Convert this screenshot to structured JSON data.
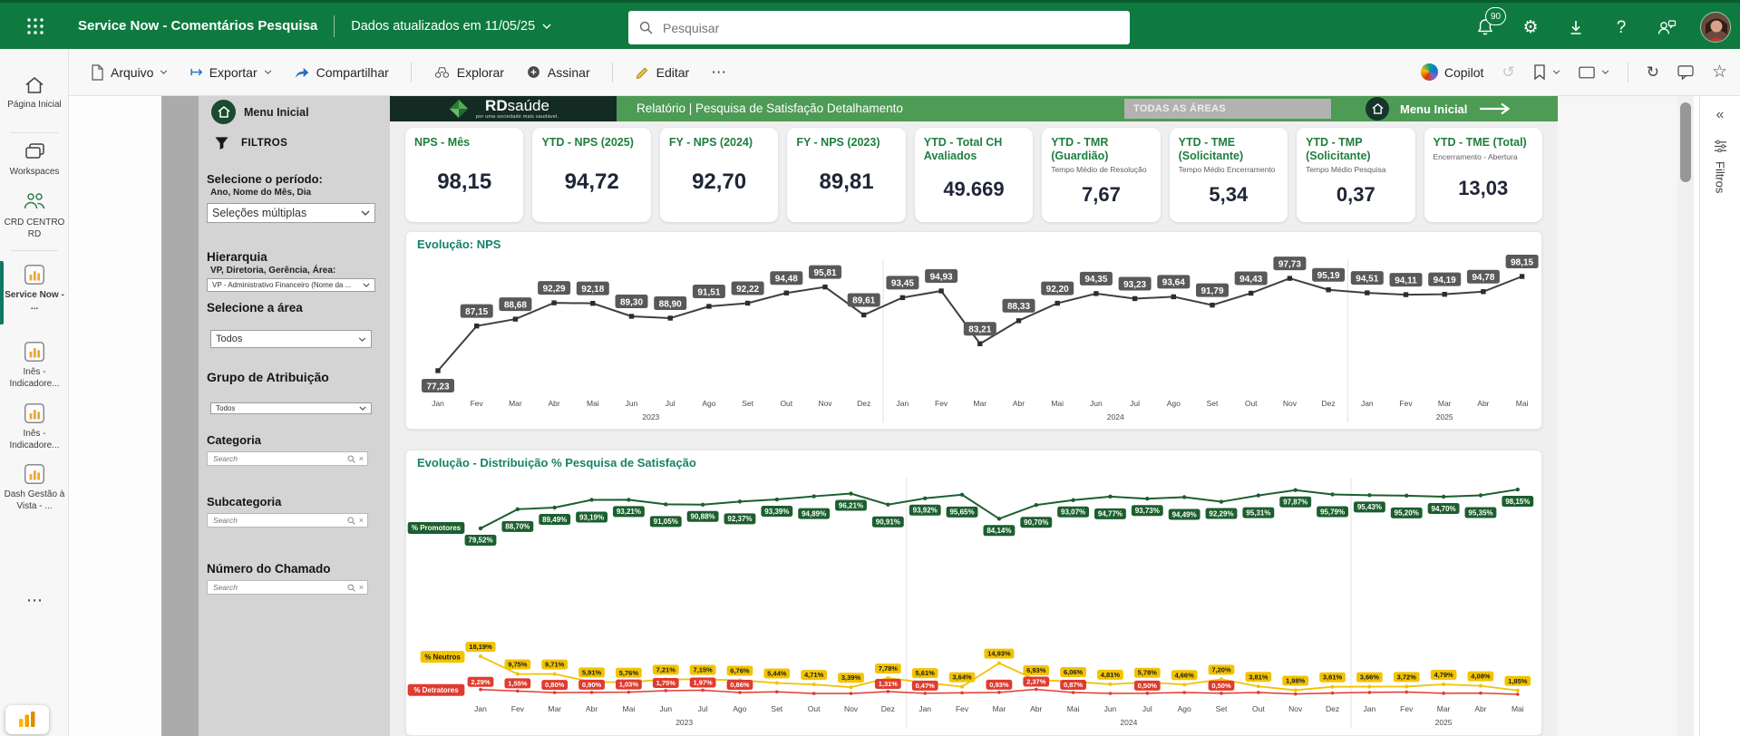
{
  "topbar": {
    "title": "Service Now - Comentários Pesquisa",
    "updated": "Dados atualizados em 11/05/25",
    "search_placeholder": "Pesquisar",
    "notif_count": "90"
  },
  "toolbar": {
    "items": [
      "Arquivo",
      "Exportar",
      "Compartilhar",
      "Explorar",
      "Assinar",
      "Editar"
    ],
    "copilot": "Copilot"
  },
  "glyphs": {
    "more": "⋯",
    "refresh": "↻",
    "star": "☆",
    "help": "?",
    "collapse": "«",
    "close": "×",
    "export": "↦",
    "undo": "↺",
    "gear": "⚙"
  },
  "sidebar": {
    "items": [
      {
        "label": "Página Inicial"
      },
      {
        "label": "Workspaces"
      },
      {
        "label": "CRD CENTRO RD"
      },
      {
        "label": "Service Now - ...",
        "active": true
      },
      {
        "label": "Inês - Indicadore..."
      },
      {
        "label": "Inês - Indicadore..."
      },
      {
        "label": "Dash Gestão à Vista - ..."
      }
    ]
  },
  "filters": {
    "menu": "Menu Inicial",
    "title": "FILTROS",
    "period_label": "Selecione o período:",
    "period_sub": "Ano, Nome do Mês, Dia",
    "period_value": "Seleções múltiplas",
    "hier_label": "Hierarquia",
    "hier_sub": "VP, Diretoria, Gerência, Área:",
    "hier_value": "VP - Administrativo Financeiro  (Nome da ...",
    "area_label": "Selecione a área",
    "area_value": "Todos",
    "grupo_label": "Grupo de Atribuição",
    "grupo_value": "Todos",
    "categoria_label": "Categoria",
    "subcategoria_label": "Subcategoria",
    "chamado_label": "Número do Chamado",
    "search_placeholder": "Search"
  },
  "report_header": {
    "brand": "RD",
    "brand2": "saúde",
    "brand_sub": "por uma sociedade mais saudável.",
    "title": "Relatório | Pesquisa de Satisfação Detalhamento",
    "badge": "TODAS AS ÁREAS",
    "menu": "Menu Inicial"
  },
  "kpis": [
    {
      "title": "NPS - Mês",
      "value": "98,15"
    },
    {
      "title": "YTD - NPS (2025)",
      "value": "94,72"
    },
    {
      "title": "FY - NPS (2024)",
      "value": "92,70"
    },
    {
      "title": "FY - NPS (2023)",
      "value": "89,81"
    },
    {
      "title": "YTD - Total CH Avaliados",
      "value": "49.669"
    },
    {
      "title": "YTD - TMR (Guardião)",
      "sub": "Tempo Médio de Resolução",
      "value": "7,67"
    },
    {
      "title": "YTD - TME (Solicitante)",
      "sub": "Tempo Médio  Encerramento",
      "value": "5,34"
    },
    {
      "title": "YTD - TMP (Solicitante)",
      "sub": "Tempo Médio Pesquisa",
      "value": "0,37"
    },
    {
      "title": "YTD - TME (Total)",
      "sub": "Encerramento - Abertura",
      "value": "13,03"
    }
  ],
  "chart_data": [
    {
      "type": "line",
      "title": "Evolução: NPS",
      "x": [
        "Jan",
        "Fev",
        "Mar",
        "Abr",
        "Mai",
        "Jun",
        "Jul",
        "Ago",
        "Set",
        "Out",
        "Nov",
        "Dez",
        "Jan",
        "Fev",
        "Mar",
        "Abr",
        "Mai",
        "Jun",
        "Jul",
        "Ago",
        "Set",
        "Out",
        "Nov",
        "Dez",
        "Jan",
        "Fev",
        "Mar",
        "Abr",
        "Mai"
      ],
      "year_groups": [
        {
          "label": "2023",
          "from": 0,
          "to": 11
        },
        {
          "label": "2024",
          "from": 12,
          "to": 23
        },
        {
          "label": "2025",
          "from": 24,
          "to": 28
        }
      ],
      "ylim": [
        75,
        100
      ],
      "grid": false,
      "value_labels": true,
      "series": [
        {
          "name": "NPS",
          "color": "#3f3f3f",
          "values": [
            77.23,
            87.15,
            88.68,
            92.29,
            92.18,
            89.3,
            88.9,
            91.51,
            92.22,
            94.48,
            95.81,
            89.61,
            93.45,
            94.93,
            83.21,
            88.33,
            92.2,
            94.35,
            93.23,
            93.64,
            91.79,
            94.43,
            97.73,
            95.19,
            94.51,
            94.11,
            94.19,
            94.78,
            98.15
          ]
        }
      ],
      "label_bg": "#595959"
    },
    {
      "type": "line",
      "title": "Evolução - Distribuição % Pesquisa de Satisfação",
      "x": [
        "Jan",
        "Fev",
        "Mar",
        "Abr",
        "Mai",
        "Jun",
        "Jul",
        "Ago",
        "Set",
        "Out",
        "Nov",
        "Dez",
        "Jan",
        "Fev",
        "Mar",
        "Abr",
        "Mai",
        "Jun",
        "Jul",
        "Ago",
        "Set",
        "Out",
        "Nov",
        "Dez",
        "Jan",
        "Fev",
        "Mar",
        "Abr",
        "Mai"
      ],
      "year_groups": [
        {
          "label": "2023",
          "from": 0,
          "to": 11
        },
        {
          "label": "2024",
          "from": 12,
          "to": 23
        },
        {
          "label": "2025",
          "from": 24,
          "to": 28
        }
      ],
      "ylim": [
        0,
        100
      ],
      "suffix": "%",
      "series": [
        {
          "name": "% Promotores",
          "color": "#1c5f2e",
          "values": [
            79.52,
            88.7,
            89.49,
            93.19,
            93.21,
            91.05,
            90.88,
            92.37,
            93.39,
            94.89,
            96.21,
            90.91,
            93.92,
            95.65,
            84.14,
            90.7,
            93.07,
            94.77,
            93.73,
            94.49,
            92.29,
            95.31,
            97.87,
            95.79,
            95.43,
            95.2,
            94.7,
            95.35,
            98.15
          ]
        },
        {
          "name": "% Neutros",
          "color": "#f2c300",
          "text_color": "#1a1a1a",
          "values": [
            18.19,
            9.75,
            9.71,
            5.91,
            5.76,
            7.21,
            7.15,
            6.76,
            5.44,
            4.71,
            3.39,
            7.78,
            5.61,
            3.64,
            14.93,
            6.93,
            6.06,
            4.81,
            5.78,
            4.66,
            7.2,
            3.81,
            1.98,
            3.61,
            3.66,
            3.72,
            4.79,
            4.08,
            1.85
          ]
        },
        {
          "name": "% Detratores",
          "color": "#e03b2f",
          "values": [
            2.29,
            1.55,
            0.8,
            0.9,
            1.03,
            1.75,
            1.97,
            0.86,
            1.17,
            0.4,
            0.4,
            1.31,
            0.47,
            0.71,
            0.93,
            2.37,
            0.87,
            0.42,
            0.5,
            0.85,
            0.5,
            0.88,
            0.15,
            0.6,
            0.91,
            1.08,
            0.51,
            0.57,
            0.0
          ],
          "label_shown": [
            true,
            true,
            true,
            true,
            true,
            true,
            true,
            true,
            false,
            false,
            false,
            true,
            true,
            false,
            true,
            true,
            true,
            false,
            true,
            false,
            true,
            false,
            false,
            false,
            false,
            false,
            false,
            false,
            false
          ]
        }
      ]
    }
  ],
  "filtros_pane": {
    "label": "Filtros"
  },
  "colors": {
    "topbar_green": "#0e7a40",
    "band_green": "#4d9b55",
    "kpi_title_green": "#1e7e3e",
    "promoters": "#1c5f2e",
    "neutrals": "#f2c300",
    "detractors": "#e03b2f",
    "nps_label_bg": "#595959",
    "active_rail": "#117865"
  }
}
